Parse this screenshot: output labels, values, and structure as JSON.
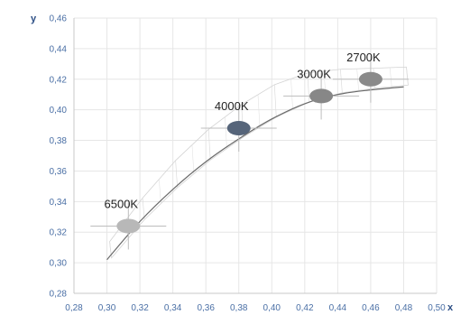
{
  "chart_data": {
    "type": "scatter",
    "xlabel": "x",
    "ylabel": "y",
    "xlim": [
      0.28,
      0.5
    ],
    "ylim": [
      0.28,
      0.46
    ],
    "xticks": [
      "0,28",
      "0,30",
      "0,32",
      "0,34",
      "0,36",
      "0,38",
      "0,40",
      "0,42",
      "0,44",
      "0,46",
      "0,48",
      "0,50"
    ],
    "yticks": [
      "0,28",
      "0,30",
      "0,32",
      "0,34",
      "0,36",
      "0,38",
      "0,40",
      "0,42",
      "0,44",
      "0,46"
    ],
    "grid": true,
    "points": [
      {
        "label": "6500K",
        "x": 0.313,
        "y": 0.324,
        "color": "#b8b8b8",
        "label_color": "#9a9a9a"
      },
      {
        "label": "4000K",
        "x": 0.38,
        "y": 0.388,
        "color": "#56657a",
        "label_color": "#1e1e1e"
      },
      {
        "label": "3000K",
        "x": 0.43,
        "y": 0.409,
        "color": "#878787",
        "label_color": "#2a2a2a"
      },
      {
        "label": "2700K",
        "x": 0.46,
        "y": 0.42,
        "color": "#8a8a8a",
        "label_color": "#2a2a2a"
      }
    ],
    "planckian_locus": {
      "x": [
        0.3,
        0.32,
        0.34,
        0.36,
        0.38,
        0.4,
        0.42,
        0.44,
        0.46,
        0.48
      ],
      "y": [
        0.302,
        0.327,
        0.348,
        0.366,
        0.381,
        0.394,
        0.404,
        0.41,
        0.413,
        0.415
      ]
    }
  }
}
